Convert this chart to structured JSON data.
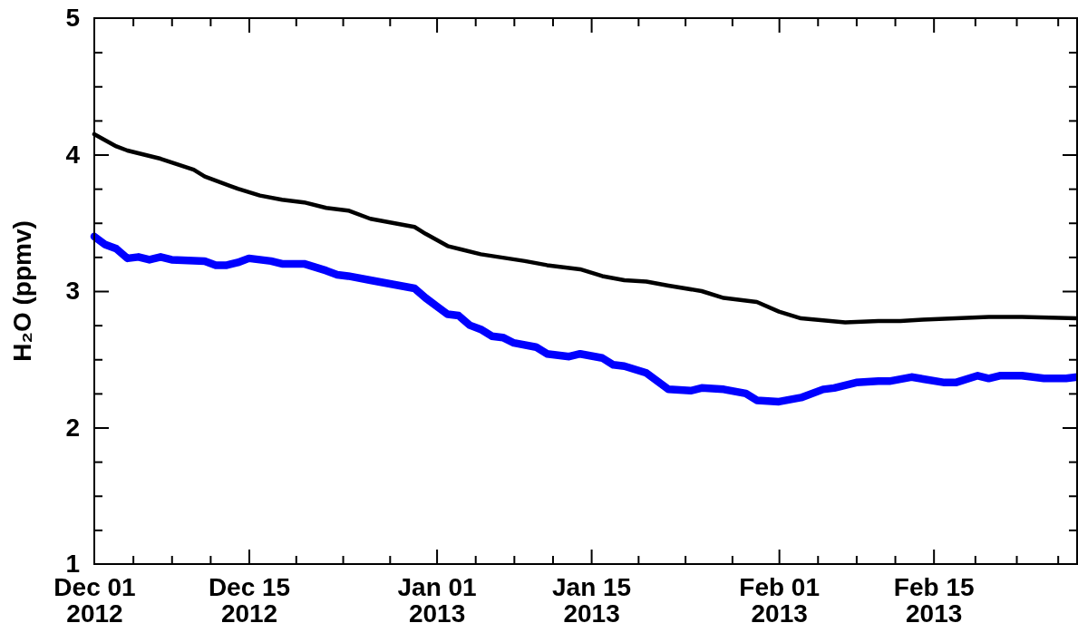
{
  "chart_data": {
    "type": "line",
    "ylabel": "H₂O (ppmv)",
    "xlim": [
      "2012-12-01",
      "2013-02-28"
    ],
    "xticks": [
      {
        "value": "2012-12-01",
        "label": "Dec 01\n2012"
      },
      {
        "value": "2012-12-04T12:00",
        "label": null
      },
      {
        "value": "2012-12-08",
        "label": null
      },
      {
        "value": "2012-12-11T12:00",
        "label": null
      },
      {
        "value": "2012-12-15",
        "label": "Dec 15\n2012"
      },
      {
        "value": "2012-12-19T06:00",
        "label": null
      },
      {
        "value": "2012-12-23T12:00",
        "label": null
      },
      {
        "value": "2012-12-27T18:00",
        "label": null
      },
      {
        "value": "2013-01-01",
        "label": "Jan 01\n2013"
      },
      {
        "value": "2013-01-04T12:00",
        "label": null
      },
      {
        "value": "2013-01-08",
        "label": null
      },
      {
        "value": "2013-01-11T12:00",
        "label": null
      },
      {
        "value": "2013-01-15",
        "label": "Jan 15\n2013"
      },
      {
        "value": "2013-01-19T06:00",
        "label": null
      },
      {
        "value": "2013-01-23T12:00",
        "label": null
      },
      {
        "value": "2013-01-27T18:00",
        "label": null
      },
      {
        "value": "2013-02-01",
        "label": "Feb 01\n2013"
      },
      {
        "value": "2013-02-04T12:00",
        "label": null
      },
      {
        "value": "2013-02-08",
        "label": null
      },
      {
        "value": "2013-02-11T12:00",
        "label": null
      },
      {
        "value": "2013-02-15",
        "label": "Feb 15\n2013"
      },
      {
        "value": "2013-02-18T18:00",
        "label": null
      },
      {
        "value": "2013-02-22T12:00",
        "label": null
      },
      {
        "value": "2013-02-26T06:00",
        "label": null
      }
    ],
    "ylim": [
      1,
      5
    ],
    "yticks": [
      1,
      {
        "value": 1.25,
        "label": null
      },
      {
        "value": 1.5,
        "label": null
      },
      {
        "value": 1.75,
        "label": null
      },
      2,
      {
        "value": 2.25,
        "label": null
      },
      {
        "value": 2.5,
        "label": null
      },
      {
        "value": 2.75,
        "label": null
      },
      3,
      {
        "value": 3.25,
        "label": null
      },
      {
        "value": 3.5,
        "label": null
      },
      {
        "value": 3.75,
        "label": null
      },
      4,
      {
        "value": 4.25,
        "label": null
      },
      {
        "value": 4.5,
        "label": null
      },
      {
        "value": 4.75,
        "label": null
      },
      5
    ],
    "series": [
      {
        "color": "#000000",
        "x": [
          "2012-12-01",
          "2012-12-03",
          "2012-12-04",
          "2012-12-07",
          "2012-12-10",
          "2012-12-11",
          "2012-12-14",
          "2012-12-16",
          "2012-12-18",
          "2012-12-20",
          "2012-12-22",
          "2012-12-24",
          "2012-12-26",
          "2012-12-30",
          "2012-12-31",
          "2013-01-02",
          "2013-01-05",
          "2013-01-09",
          "2013-01-11",
          "2013-01-14",
          "2013-01-16",
          "2013-01-18",
          "2013-01-20",
          "2013-01-22",
          "2013-01-25",
          "2013-01-27",
          "2013-01-30",
          "2013-02-01",
          "2013-02-03",
          "2013-02-07",
          "2013-02-10",
          "2013-02-12",
          "2013-02-14",
          "2013-02-17",
          "2013-02-20",
          "2013-02-23",
          "2013-02-28"
        ],
        "values": [
          4.15,
          4.06,
          4.03,
          3.97,
          3.89,
          3.84,
          3.75,
          3.7,
          3.67,
          3.65,
          3.61,
          3.59,
          3.53,
          3.47,
          3.42,
          3.33,
          3.27,
          3.22,
          3.19,
          3.16,
          3.11,
          3.08,
          3.07,
          3.04,
          3.0,
          2.95,
          2.92,
          2.85,
          2.8,
          2.77,
          2.78,
          2.78,
          2.79,
          2.8,
          2.81,
          2.81,
          2.8
        ]
      },
      {
        "color": "#0000ff",
        "x": [
          "2012-12-01",
          "2012-12-02",
          "2012-12-03",
          "2012-12-04",
          "2012-12-05",
          "2012-12-06",
          "2012-12-07",
          "2012-12-08",
          "2012-12-11",
          "2012-12-12",
          "2012-12-13",
          "2012-12-14",
          "2012-12-15",
          "2012-12-17",
          "2012-12-18",
          "2012-12-20",
          "2012-12-22",
          "2012-12-23",
          "2012-12-24",
          "2012-12-26",
          "2012-12-28",
          "2012-12-30",
          "2012-12-31",
          "2013-01-01",
          "2013-01-02",
          "2013-01-03",
          "2013-01-04",
          "2013-01-05",
          "2013-01-06",
          "2013-01-07",
          "2013-01-08",
          "2013-01-10",
          "2013-01-11",
          "2013-01-13",
          "2013-01-14",
          "2013-01-16",
          "2013-01-17",
          "2013-01-18",
          "2013-01-20",
          "2013-01-22",
          "2013-01-24",
          "2013-01-25",
          "2013-01-27",
          "2013-01-29",
          "2013-01-30",
          "2013-02-01",
          "2013-02-03",
          "2013-02-05",
          "2013-02-06",
          "2013-02-08",
          "2013-02-10",
          "2013-02-11",
          "2013-02-13",
          "2013-02-16",
          "2013-02-17",
          "2013-02-19",
          "2013-02-20",
          "2013-02-21",
          "2013-02-23",
          "2013-02-25",
          "2013-02-27",
          "2013-02-28"
        ],
        "values": [
          3.4,
          3.34,
          3.31,
          3.24,
          3.25,
          3.23,
          3.25,
          3.23,
          3.22,
          3.19,
          3.19,
          3.21,
          3.24,
          3.22,
          3.2,
          3.2,
          3.15,
          3.12,
          3.11,
          3.08,
          3.05,
          3.02,
          2.95,
          2.89,
          2.83,
          2.82,
          2.75,
          2.72,
          2.67,
          2.66,
          2.62,
          2.59,
          2.54,
          2.52,
          2.54,
          2.51,
          2.46,
          2.45,
          2.4,
          2.28,
          2.27,
          2.29,
          2.28,
          2.25,
          2.2,
          2.19,
          2.22,
          2.28,
          2.29,
          2.33,
          2.34,
          2.34,
          2.37,
          2.33,
          2.33,
          2.38,
          2.36,
          2.38,
          2.38,
          2.36,
          2.36,
          2.37
        ]
      }
    ]
  }
}
